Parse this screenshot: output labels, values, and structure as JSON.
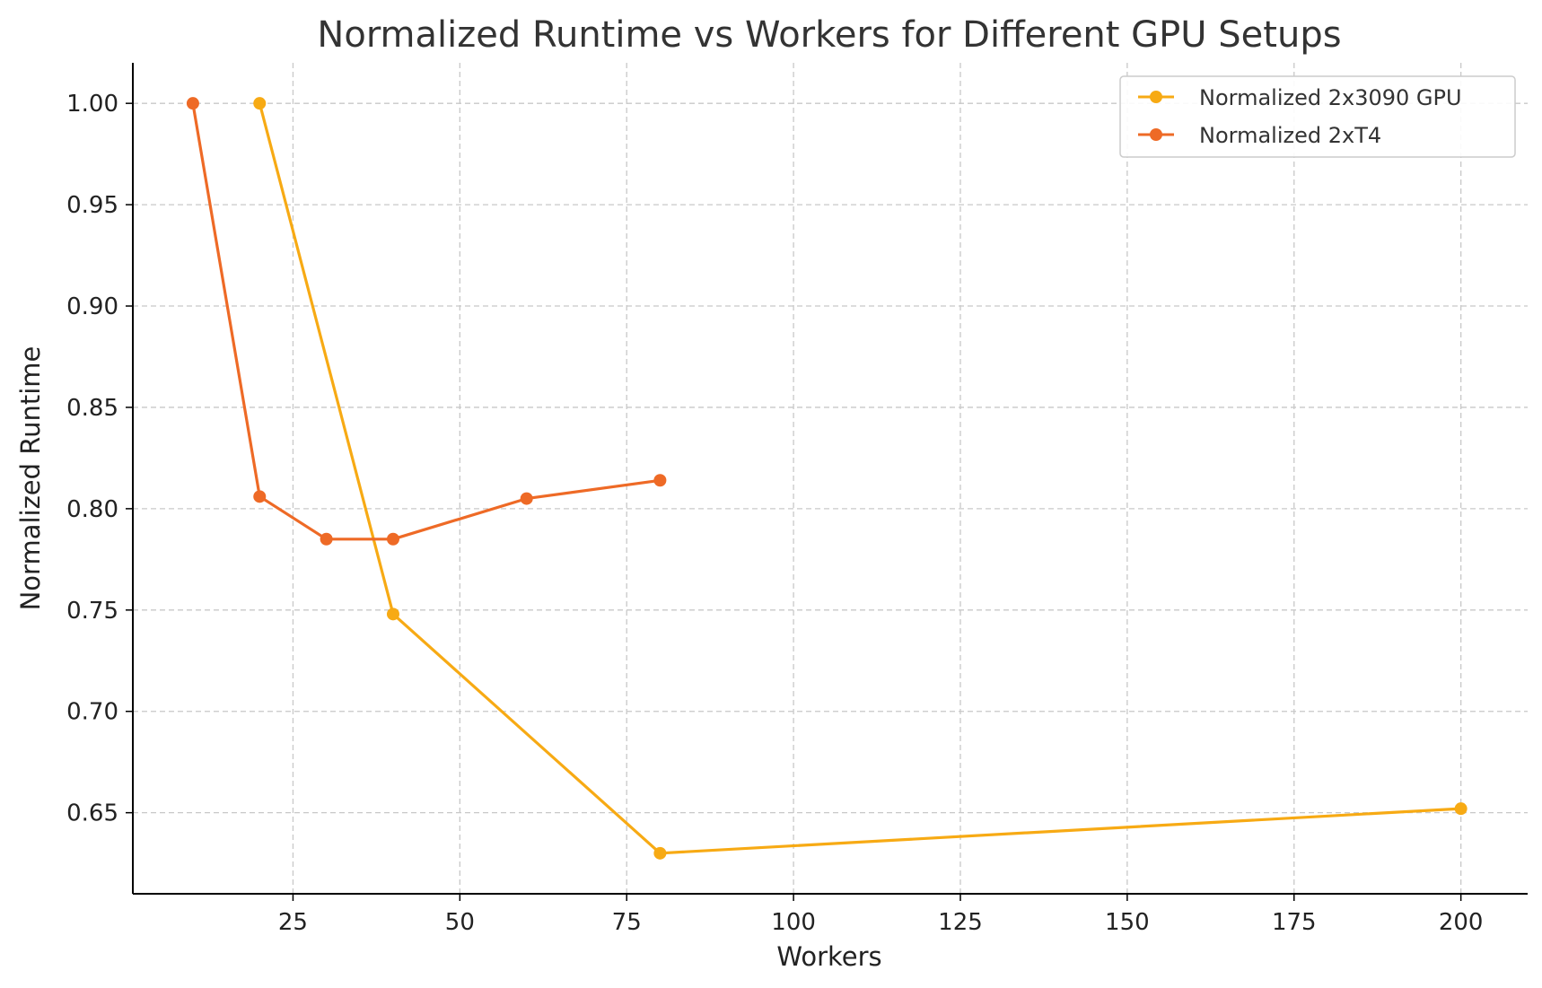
{
  "chart_data": {
    "type": "line",
    "title": "Normalized Runtime vs Workers for Different GPU Setups",
    "xlabel": "Workers",
    "ylabel": "Normalized Runtime",
    "xlim": [
      1,
      210
    ],
    "ylim": [
      0.61,
      1.02
    ],
    "xticks": [
      25,
      50,
      75,
      100,
      125,
      150,
      175,
      200
    ],
    "yticks": [
      0.65,
      0.7,
      0.75,
      0.8,
      0.85,
      0.9,
      0.95,
      1.0
    ],
    "grid": true,
    "legend_position": "top-right",
    "series": [
      {
        "name": "Normalized 2x3090 GPU",
        "color": "#f7aa14",
        "x": [
          20,
          40,
          80,
          200
        ],
        "y": [
          1.0,
          0.748,
          0.63,
          0.652
        ]
      },
      {
        "name": "Normalized 2xT4",
        "color": "#ee6a26",
        "x": [
          10,
          20,
          30,
          40,
          60,
          80
        ],
        "y": [
          1.0,
          0.806,
          0.785,
          0.785,
          0.805,
          0.814
        ]
      }
    ]
  }
}
